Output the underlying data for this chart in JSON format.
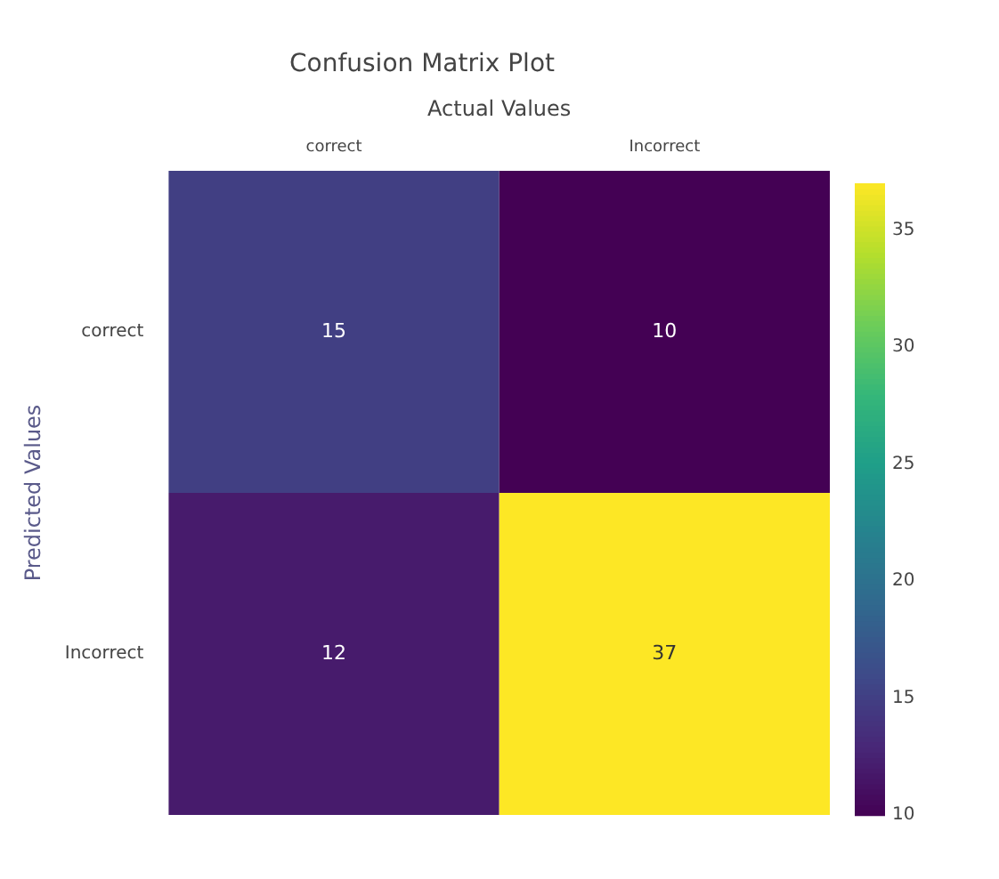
{
  "chart_data": {
    "type": "heatmap",
    "title": "Confusion Matrix Plot",
    "xlabel": "Actual Values",
    "ylabel": "Predicted Values",
    "categories": [
      "correct",
      "Incorrect"
    ],
    "y_categories": [
      "correct",
      "Incorrect"
    ],
    "cells": [
      [
        15,
        10
      ],
      [
        12,
        37
      ]
    ],
    "data_labels": true,
    "clim": [
      10,
      37
    ],
    "cticks": [
      10,
      15,
      20,
      25,
      30,
      35
    ]
  }
}
